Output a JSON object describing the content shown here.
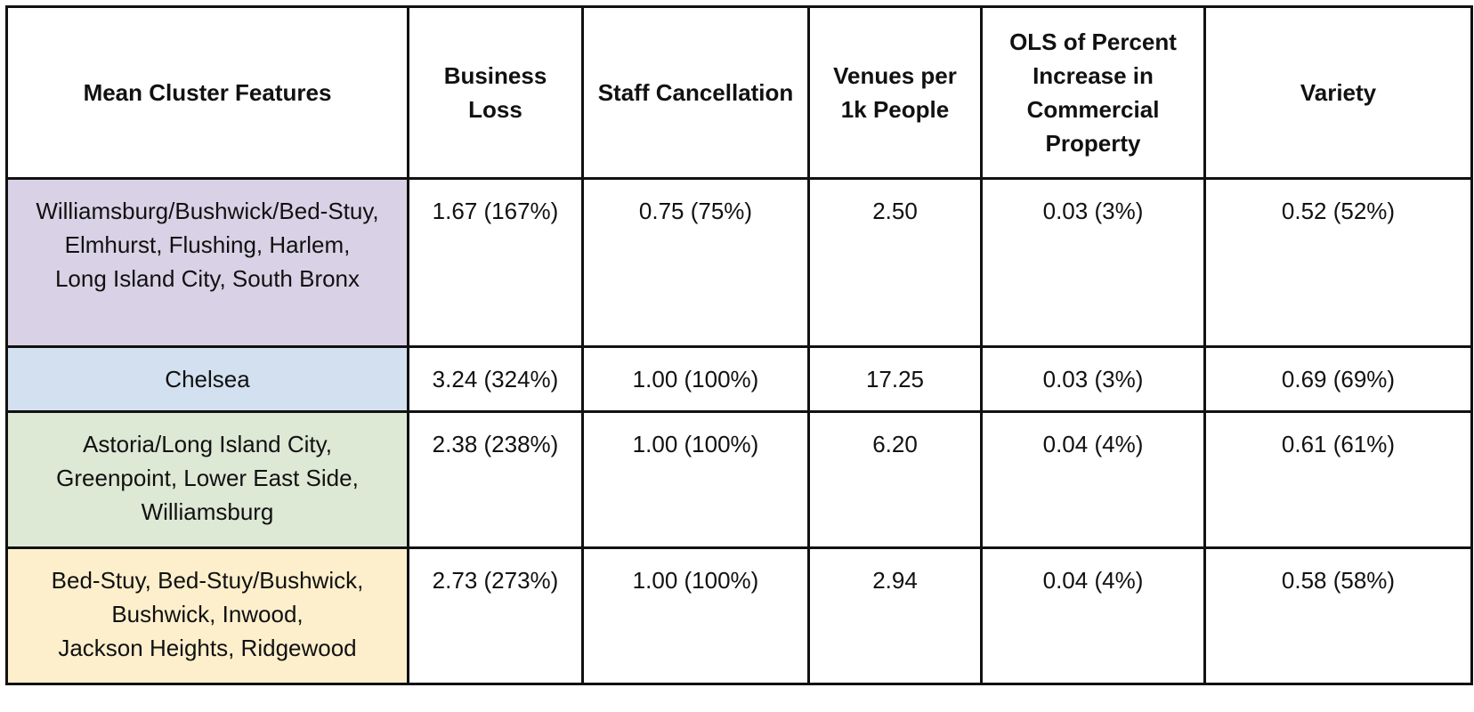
{
  "table": {
    "headers": [
      "Mean Cluster Features",
      "Business\nLoss",
      "Staff Cancellation",
      "Venues per\n1k People",
      "OLS of Percent\nIncrease in\nCommercial\nProperty",
      "Variety"
    ],
    "rows": [
      {
        "cluster": "Williamsburg/Bushwick/Bed-Stuy,\nElmhurst, Flushing, Harlem,\nLong Island City, South Bronx",
        "color": "#d9d2e6",
        "business_loss": "1.67 (167%)",
        "staff_cancellation": "0.75 (75%)",
        "venues_per_1k": "2.50",
        "ols_commercial": "0.03 (3%)",
        "variety": "0.52 (52%)"
      },
      {
        "cluster": "Chelsea",
        "color": "#d3e0f0",
        "business_loss": "3.24 (324%)",
        "staff_cancellation": "1.00 (100%)",
        "venues_per_1k": "17.25",
        "ols_commercial": "0.03 (3%)",
        "variety": "0.69 (69%)"
      },
      {
        "cluster": "Astoria/Long Island City,\nGreenpoint, Lower East Side,\nWilliamsburg",
        "color": "#dde8d5",
        "business_loss": "2.38 (238%)",
        "staff_cancellation": "1.00 (100%)",
        "venues_per_1k": "6.20",
        "ols_commercial": "0.04 (4%)",
        "variety": "0.61 (61%)"
      },
      {
        "cluster": "Bed-Stuy, Bed-Stuy/Bushwick,\nBushwick, Inwood,\nJackson Heights, Ridgewood",
        "color": "#fdefcc",
        "business_loss": "2.73 (273%)",
        "staff_cancellation": "1.00 (100%)",
        "venues_per_1k": "2.94",
        "ols_commercial": "0.04 (4%)",
        "variety": "0.58 (58%)"
      }
    ]
  }
}
